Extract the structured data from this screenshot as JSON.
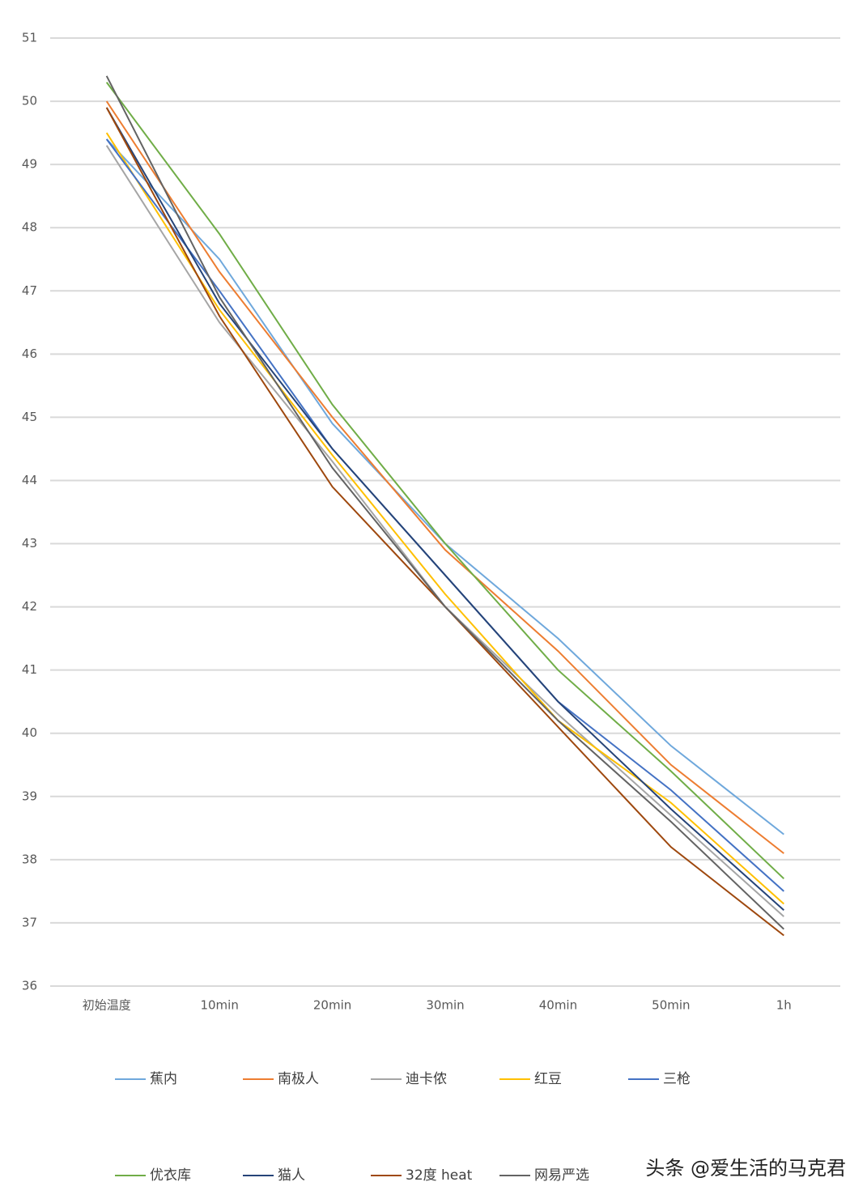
{
  "chart_data": {
    "type": "line",
    "categories": [
      "初始温度",
      "10min",
      "20min",
      "30min",
      "40min",
      "50min",
      "1h"
    ],
    "series": [
      {
        "name": "蕉内",
        "color": "#6fa8dc",
        "values": [
          49.4,
          47.5,
          44.9,
          43.0,
          41.5,
          39.8,
          38.4
        ]
      },
      {
        "name": "南极人",
        "color": "#ed7d31",
        "values": [
          50.0,
          47.3,
          45.0,
          42.9,
          41.3,
          39.5,
          38.1
        ]
      },
      {
        "name": "迪卡侬",
        "color": "#a5a5a5",
        "values": [
          49.3,
          46.5,
          44.3,
          42.0,
          40.3,
          38.7,
          37.1
        ]
      },
      {
        "name": "红豆",
        "color": "#ffc000",
        "values": [
          49.5,
          46.7,
          44.4,
          42.2,
          40.2,
          38.9,
          37.3
        ]
      },
      {
        "name": "三枪",
        "color": "#4472c4",
        "values": [
          49.4,
          47.0,
          44.5,
          42.5,
          40.5,
          39.1,
          37.5
        ]
      },
      {
        "name": "优衣库",
        "color": "#70ad47",
        "values": [
          50.3,
          47.9,
          45.2,
          43.0,
          41.0,
          39.4,
          37.7
        ]
      },
      {
        "name": "猫人",
        "color": "#264478",
        "values": [
          49.9,
          46.8,
          44.5,
          42.5,
          40.5,
          38.8,
          37.2
        ]
      },
      {
        "name": "32度 heat",
        "color": "#9e480e",
        "values": [
          49.9,
          46.6,
          43.9,
          42.0,
          40.1,
          38.2,
          36.8
        ]
      },
      {
        "name": "网易严选",
        "color": "#636363",
        "values": [
          50.4,
          46.9,
          44.2,
          42.0,
          40.2,
          38.6,
          36.9
        ]
      }
    ],
    "ylim": [
      36,
      51
    ],
    "yticks": [
      36,
      37,
      38,
      39,
      40,
      41,
      42,
      43,
      44,
      45,
      46,
      47,
      48,
      49,
      50,
      51
    ],
    "grid": true,
    "legend": "bottom",
    "watermark": "头条 @爱生活的马克君"
  }
}
